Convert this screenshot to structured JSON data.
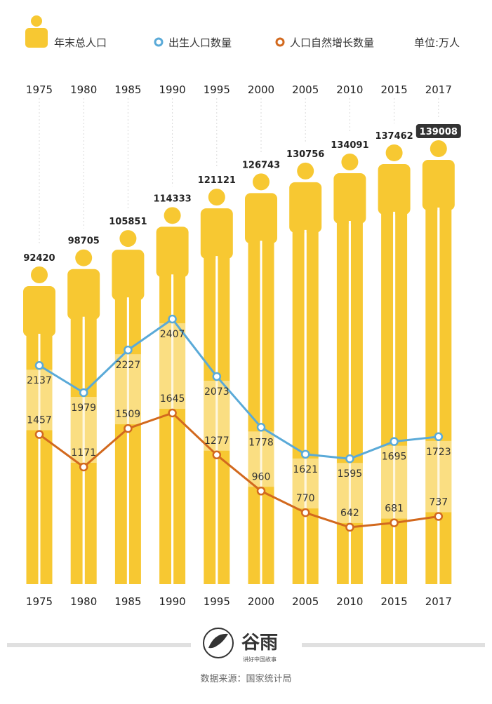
{
  "legend": {
    "total_label": "年末总人口",
    "births_label": "出生人口数量",
    "increase_label": "人口自然增长数量",
    "unit_label": "单位:万人"
  },
  "footer": {
    "brand_name": "谷雨",
    "brand_slogan": "讲好中国故事",
    "source": "数据来源：国家统计局"
  },
  "colors": {
    "total": "#F7C832",
    "total_light": "#FDF1C4",
    "births": "#5AAAD8",
    "increase": "#D2691E",
    "badge": "#333333"
  },
  "chart_data": {
    "type": "line",
    "categories": [
      "1975",
      "1980",
      "1985",
      "1990",
      "1995",
      "2000",
      "2005",
      "2010",
      "2015",
      "2017"
    ],
    "series": [
      {
        "name": "年末总人口",
        "values": [
          92420,
          98705,
          105851,
          114333,
          121121,
          126743,
          130756,
          134091,
          137462,
          139008
        ]
      },
      {
        "name": "出生人口数量",
        "values": [
          2137,
          1979,
          2227,
          2407,
          2073,
          1778,
          1621,
          1595,
          1695,
          1723
        ]
      },
      {
        "name": "人口自然增长数量",
        "values": [
          1457,
          1171,
          1509,
          1645,
          1277,
          960,
          770,
          642,
          681,
          737
        ]
      }
    ],
    "highlighted_category": "2017",
    "grid": false,
    "legend_position": "top"
  }
}
